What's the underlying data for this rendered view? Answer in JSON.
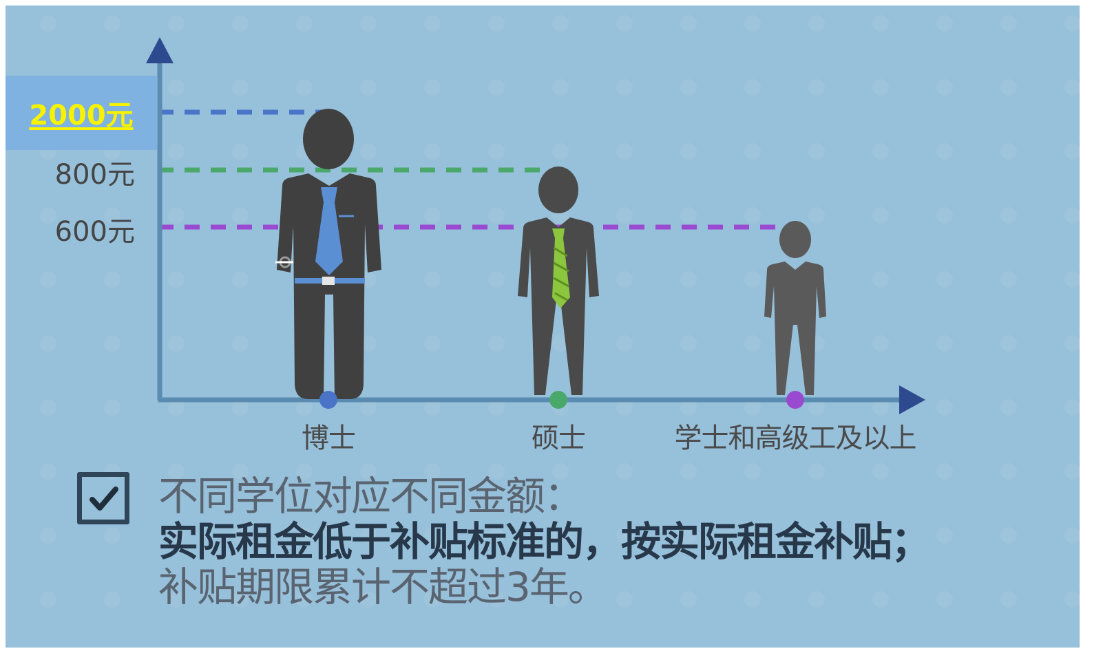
{
  "chart_data": {
    "type": "bar",
    "categories": [
      "博士",
      "硕士",
      "学士和高级工及以上"
    ],
    "values": [
      2000,
      800,
      600
    ],
    "y_tick_labels": [
      "2000元",
      "800元",
      "600元"
    ],
    "highlight_label": "2000元",
    "series_colors": [
      "#4a74c8",
      "#4aa86a",
      "#9a4ad0"
    ],
    "grid": false
  },
  "note": {
    "line1": "不同学位对应不同金额：",
    "line2": "实际租金低于补贴标准的，按实际租金补贴；",
    "line3": "补贴期限累计不超过3年。"
  },
  "colors": {
    "background": "#97c0da",
    "axis": "#5a8bb0",
    "axis_arrow": "#2e4a8f",
    "phd_tie": "#5b8fd4",
    "master_tie": "#8cc63f",
    "figure_dark": "#404040",
    "figure_mid": "#4a4a4a",
    "figure_light": "#5a5a5a"
  }
}
